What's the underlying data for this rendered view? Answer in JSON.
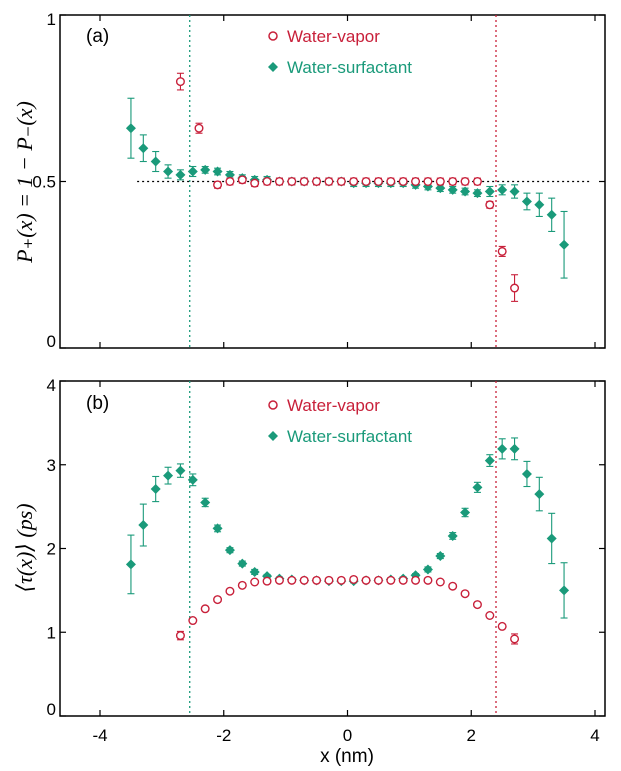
{
  "colors": {
    "vapor": "#c8203a",
    "surfactant": "#1a9a7a",
    "axis": "#000000"
  },
  "markers": {
    "vapor": "open-circle",
    "surfactant": "filled-diamond"
  },
  "x_axis": {
    "label": "x (nm)",
    "range": [
      -5,
      5
    ],
    "ticks": [
      -4,
      -2,
      0,
      2,
      4
    ],
    "tick_labels": [
      "-4",
      "-2",
      "0",
      "2",
      "4"
    ]
  },
  "chart_data": [
    {
      "type": "scatter",
      "panel_label": "(a)",
      "ylabel": "P₊(x) = 1 − P₋(x)",
      "xlabel": "",
      "xlim": [
        -5,
        5
      ],
      "ylim": [
        0,
        1
      ],
      "y_ticks": [
        0,
        0.5,
        1
      ],
      "y_tick_labels": [
        "0",
        "0.5",
        "1"
      ],
      "legend": "top-center",
      "reference_lines": {
        "horizontal_dotted": 0.5,
        "vertical_dotted_surfactant": -2.55,
        "vertical_dotted_vapor": 2.4
      },
      "series": [
        {
          "name": "Water-vapor",
          "color_key": "vapor",
          "marker": "open-circle",
          "points": [
            {
              "x": -2.7,
              "y": 0.8,
              "err": 0.025
            },
            {
              "x": -2.4,
              "y": 0.66,
              "err": 0.015
            },
            {
              "x": -2.1,
              "y": 0.49,
              "err": 0.01
            },
            {
              "x": -1.9,
              "y": 0.5,
              "err": 0.01
            },
            {
              "x": -1.7,
              "y": 0.505,
              "err": 0.01
            },
            {
              "x": -1.5,
              "y": 0.495,
              "err": 0.01
            },
            {
              "x": -1.3,
              "y": 0.5,
              "err": 0.01
            },
            {
              "x": -1.1,
              "y": 0.5,
              "err": 0.01
            },
            {
              "x": -0.9,
              "y": 0.5,
              "err": 0.01
            },
            {
              "x": -0.7,
              "y": 0.5,
              "err": 0.01
            },
            {
              "x": -0.5,
              "y": 0.5,
              "err": 0.01
            },
            {
              "x": -0.3,
              "y": 0.5,
              "err": 0.01
            },
            {
              "x": -0.1,
              "y": 0.5,
              "err": 0.01
            },
            {
              "x": 0.1,
              "y": 0.5,
              "err": 0.01
            },
            {
              "x": 0.3,
              "y": 0.5,
              "err": 0.01
            },
            {
              "x": 0.5,
              "y": 0.5,
              "err": 0.01
            },
            {
              "x": 0.7,
              "y": 0.5,
              "err": 0.01
            },
            {
              "x": 0.9,
              "y": 0.5,
              "err": 0.01
            },
            {
              "x": 1.1,
              "y": 0.5,
              "err": 0.01
            },
            {
              "x": 1.3,
              "y": 0.5,
              "err": 0.01
            },
            {
              "x": 1.5,
              "y": 0.5,
              "err": 0.01
            },
            {
              "x": 1.7,
              "y": 0.5,
              "err": 0.01
            },
            {
              "x": 1.9,
              "y": 0.5,
              "err": 0.01
            },
            {
              "x": 2.1,
              "y": 0.5,
              "err": 0.01
            },
            {
              "x": 2.3,
              "y": 0.43,
              "err": 0.01
            },
            {
              "x": 2.5,
              "y": 0.29,
              "err": 0.015
            },
            {
              "x": 2.7,
              "y": 0.18,
              "err": 0.04
            }
          ]
        },
        {
          "name": "Water-surfactant",
          "color_key": "surfactant",
          "marker": "filled-diamond",
          "points": [
            {
              "x": -3.5,
              "y": 0.66,
              "err": 0.09
            },
            {
              "x": -3.3,
              "y": 0.6,
              "err": 0.04
            },
            {
              "x": -3.1,
              "y": 0.56,
              "err": 0.03
            },
            {
              "x": -2.9,
              "y": 0.53,
              "err": 0.02
            },
            {
              "x": -2.7,
              "y": 0.52,
              "err": 0.015
            },
            {
              "x": -2.5,
              "y": 0.53,
              "err": 0.015
            },
            {
              "x": -2.3,
              "y": 0.535,
              "err": 0.01
            },
            {
              "x": -2.1,
              "y": 0.53,
              "err": 0.01
            },
            {
              "x": -1.9,
              "y": 0.52,
              "err": 0.01
            },
            {
              "x": -1.7,
              "y": 0.51,
              "err": 0.01
            },
            {
              "x": -1.5,
              "y": 0.505,
              "err": 0.01
            },
            {
              "x": -1.3,
              "y": 0.505,
              "err": 0.01
            },
            {
              "x": -1.1,
              "y": 0.5,
              "err": 0.01
            },
            {
              "x": -0.9,
              "y": 0.5,
              "err": 0.01
            },
            {
              "x": -0.7,
              "y": 0.5,
              "err": 0.01
            },
            {
              "x": -0.5,
              "y": 0.5,
              "err": 0.01
            },
            {
              "x": -0.3,
              "y": 0.5,
              "err": 0.01
            },
            {
              "x": -0.1,
              "y": 0.5,
              "err": 0.01
            },
            {
              "x": 0.1,
              "y": 0.495,
              "err": 0.01
            },
            {
              "x": 0.3,
              "y": 0.495,
              "err": 0.01
            },
            {
              "x": 0.5,
              "y": 0.495,
              "err": 0.01
            },
            {
              "x": 0.7,
              "y": 0.495,
              "err": 0.01
            },
            {
              "x": 0.9,
              "y": 0.495,
              "err": 0.01
            },
            {
              "x": 1.1,
              "y": 0.49,
              "err": 0.01
            },
            {
              "x": 1.3,
              "y": 0.485,
              "err": 0.01
            },
            {
              "x": 1.5,
              "y": 0.48,
              "err": 0.01
            },
            {
              "x": 1.7,
              "y": 0.475,
              "err": 0.01
            },
            {
              "x": 1.9,
              "y": 0.47,
              "err": 0.01
            },
            {
              "x": 2.1,
              "y": 0.465,
              "err": 0.01
            },
            {
              "x": 2.3,
              "y": 0.47,
              "err": 0.015
            },
            {
              "x": 2.5,
              "y": 0.475,
              "err": 0.015
            },
            {
              "x": 2.7,
              "y": 0.47,
              "err": 0.02
            },
            {
              "x": 2.9,
              "y": 0.44,
              "err": 0.025
            },
            {
              "x": 3.1,
              "y": 0.43,
              "err": 0.035
            },
            {
              "x": 3.3,
              "y": 0.4,
              "err": 0.05
            },
            {
              "x": 3.5,
              "y": 0.31,
              "err": 0.1
            }
          ]
        }
      ]
    },
    {
      "type": "scatter",
      "panel_label": "(b)",
      "ylabel": "⟨τ(x)⟩ (ps)",
      "xlabel": "x (nm)",
      "xlim": [
        -5,
        5
      ],
      "ylim": [
        0,
        4
      ],
      "y_ticks": [
        0,
        1,
        2,
        3,
        4
      ],
      "y_tick_labels": [
        "0",
        "1",
        "2",
        "3",
        "4"
      ],
      "legend": "top-center",
      "reference_lines": {
        "vertical_dotted_surfactant": -2.55,
        "vertical_dotted_vapor": 2.4
      },
      "series": [
        {
          "name": "Water-vapor",
          "color_key": "vapor",
          "marker": "open-circle",
          "points": [
            {
              "x": -2.7,
              "y": 0.96,
              "err": 0.05
            },
            {
              "x": -2.5,
              "y": 1.14,
              "err": 0.02
            },
            {
              "x": -2.3,
              "y": 1.28,
              "err": 0.02
            },
            {
              "x": -2.1,
              "y": 1.39,
              "err": 0.02
            },
            {
              "x": -1.9,
              "y": 1.49,
              "err": 0.02
            },
            {
              "x": -1.7,
              "y": 1.56,
              "err": 0.02
            },
            {
              "x": -1.5,
              "y": 1.6,
              "err": 0.02
            },
            {
              "x": -1.3,
              "y": 1.61,
              "err": 0.02
            },
            {
              "x": -1.1,
              "y": 1.62,
              "err": 0.02
            },
            {
              "x": -0.9,
              "y": 1.62,
              "err": 0.02
            },
            {
              "x": -0.7,
              "y": 1.62,
              "err": 0.02
            },
            {
              "x": -0.5,
              "y": 1.62,
              "err": 0.02
            },
            {
              "x": -0.3,
              "y": 1.62,
              "err": 0.02
            },
            {
              "x": -0.1,
              "y": 1.62,
              "err": 0.02
            },
            {
              "x": 0.1,
              "y": 1.63,
              "err": 0.02
            },
            {
              "x": 0.3,
              "y": 1.62,
              "err": 0.02
            },
            {
              "x": 0.5,
              "y": 1.62,
              "err": 0.02
            },
            {
              "x": 0.7,
              "y": 1.62,
              "err": 0.02
            },
            {
              "x": 0.9,
              "y": 1.62,
              "err": 0.02
            },
            {
              "x": 1.1,
              "y": 1.62,
              "err": 0.02
            },
            {
              "x": 1.3,
              "y": 1.62,
              "err": 0.02
            },
            {
              "x": 1.5,
              "y": 1.6,
              "err": 0.02
            },
            {
              "x": 1.7,
              "y": 1.55,
              "err": 0.02
            },
            {
              "x": 1.9,
              "y": 1.46,
              "err": 0.02
            },
            {
              "x": 2.1,
              "y": 1.33,
              "err": 0.02
            },
            {
              "x": 2.3,
              "y": 1.2,
              "err": 0.02
            },
            {
              "x": 2.5,
              "y": 1.07,
              "err": 0.02
            },
            {
              "x": 2.7,
              "y": 0.92,
              "err": 0.06
            }
          ]
        },
        {
          "name": "Water-surfactant",
          "color_key": "surfactant",
          "marker": "filled-diamond",
          "points": [
            {
              "x": -3.5,
              "y": 1.81,
              "err": 0.35
            },
            {
              "x": -3.3,
              "y": 2.28,
              "err": 0.25
            },
            {
              "x": -3.1,
              "y": 2.71,
              "err": 0.15
            },
            {
              "x": -2.9,
              "y": 2.87,
              "err": 0.1
            },
            {
              "x": -2.7,
              "y": 2.93,
              "err": 0.08
            },
            {
              "x": -2.5,
              "y": 2.82,
              "err": 0.07
            },
            {
              "x": -2.3,
              "y": 2.55,
              "err": 0.05
            },
            {
              "x": -2.1,
              "y": 2.24,
              "err": 0.04
            },
            {
              "x": -1.9,
              "y": 1.98,
              "err": 0.03
            },
            {
              "x": -1.7,
              "y": 1.82,
              "err": 0.03
            },
            {
              "x": -1.5,
              "y": 1.72,
              "err": 0.03
            },
            {
              "x": -1.3,
              "y": 1.67,
              "err": 0.02
            },
            {
              "x": -1.1,
              "y": 1.64,
              "err": 0.02
            },
            {
              "x": -0.9,
              "y": 1.63,
              "err": 0.02
            },
            {
              "x": -0.7,
              "y": 1.62,
              "err": 0.02
            },
            {
              "x": -0.5,
              "y": 1.62,
              "err": 0.02
            },
            {
              "x": -0.3,
              "y": 1.61,
              "err": 0.02
            },
            {
              "x": -0.1,
              "y": 1.61,
              "err": 0.02
            },
            {
              "x": 0.1,
              "y": 1.61,
              "err": 0.02
            },
            {
              "x": 0.3,
              "y": 1.62,
              "err": 0.02
            },
            {
              "x": 0.5,
              "y": 1.62,
              "err": 0.02
            },
            {
              "x": 0.7,
              "y": 1.63,
              "err": 0.02
            },
            {
              "x": 0.9,
              "y": 1.64,
              "err": 0.02
            },
            {
              "x": 1.1,
              "y": 1.68,
              "err": 0.02
            },
            {
              "x": 1.3,
              "y": 1.75,
              "err": 0.03
            },
            {
              "x": 1.5,
              "y": 1.91,
              "err": 0.03
            },
            {
              "x": 1.7,
              "y": 2.15,
              "err": 0.04
            },
            {
              "x": 1.9,
              "y": 2.43,
              "err": 0.05
            },
            {
              "x": 2.1,
              "y": 2.73,
              "err": 0.06
            },
            {
              "x": 2.3,
              "y": 3.05,
              "err": 0.07
            },
            {
              "x": 2.5,
              "y": 3.19,
              "err": 0.12
            },
            {
              "x": 2.7,
              "y": 3.19,
              "err": 0.13
            },
            {
              "x": 2.9,
              "y": 2.89,
              "err": 0.15
            },
            {
              "x": 3.1,
              "y": 2.65,
              "err": 0.2
            },
            {
              "x": 3.3,
              "y": 2.12,
              "err": 0.3
            },
            {
              "x": 3.5,
              "y": 1.5,
              "err": 0.33
            }
          ]
        }
      ]
    }
  ]
}
